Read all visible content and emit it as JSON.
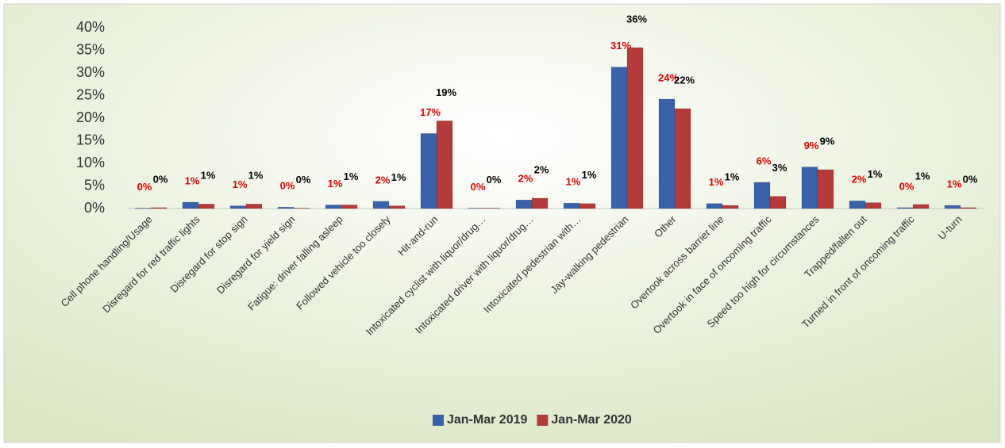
{
  "chart_data": {
    "type": "bar",
    "categories": [
      "Cell phone handling/Usage",
      "Disregard for red traffic lights",
      "Disregard for stop sign",
      "Disregard for yield sign",
      "Fatigue: driver falling asleep",
      "Followed vehicle too closely",
      "Hit-and-run",
      "Intoxicated cyclist with liquor/drug…",
      "Intoxicated driver with liquor/drug…",
      "Intoxicated pedestrian with…",
      "Jay-walking pedestrian",
      "Other",
      "Overtook across barrier line",
      "Overtook in face of oncoming traffic",
      "Speed too high for circumstances",
      "Trapped/fallen out",
      "Turned in front of oncoming traffic",
      "U-turn"
    ],
    "series": [
      {
        "name": "Jan-Mar 2019",
        "color": "#3a62a8",
        "label_color": "#e00000",
        "values": [
          0.1,
          1.4,
          0.6,
          0.3,
          0.8,
          1.6,
          16.6,
          0.1,
          1.9,
          1.2,
          31.3,
          24.2,
          1.1,
          5.8,
          9.2,
          1.7,
          0.2,
          0.7
        ],
        "value_labels": [
          "0%",
          "1%",
          "1%",
          "0%",
          "1%",
          "2%",
          "17%",
          "0%",
          "2%",
          "1%",
          "31%",
          "24%",
          "1%",
          "6%",
          "9%",
          "2%",
          "0%",
          "1%"
        ]
      },
      {
        "name": "Jan-Mar 2020",
        "color": "#b53a3a",
        "label_color": "#000000",
        "values": [
          0.2,
          1.0,
          1.0,
          0.1,
          0.8,
          0.6,
          19.4,
          0.1,
          2.3,
          1.1,
          35.6,
          22.1,
          0.7,
          2.7,
          8.6,
          1.3,
          0.9,
          0.2
        ],
        "value_labels": [
          "0%",
          "1%",
          "1%",
          "0%",
          "1%",
          "1%",
          "19%",
          "0%",
          "2%",
          "1%",
          "36%",
          "22%",
          "1%",
          "3%",
          "9%",
          "1%",
          "1%",
          "0%"
        ]
      }
    ],
    "ylim": [
      0,
      40
    ],
    "yticks": [
      {
        "value": 0,
        "label": "0%"
      },
      {
        "value": 5,
        "label": "5%"
      },
      {
        "value": 10,
        "label": "10%"
      },
      {
        "value": 15,
        "label": "15%"
      },
      {
        "value": 20,
        "label": "20%"
      },
      {
        "value": 25,
        "label": "25%"
      },
      {
        "value": 30,
        "label": "30%"
      },
      {
        "value": 35,
        "label": "35%"
      },
      {
        "value": 40,
        "label": "40%"
      }
    ],
    "legend": "bottom"
  }
}
